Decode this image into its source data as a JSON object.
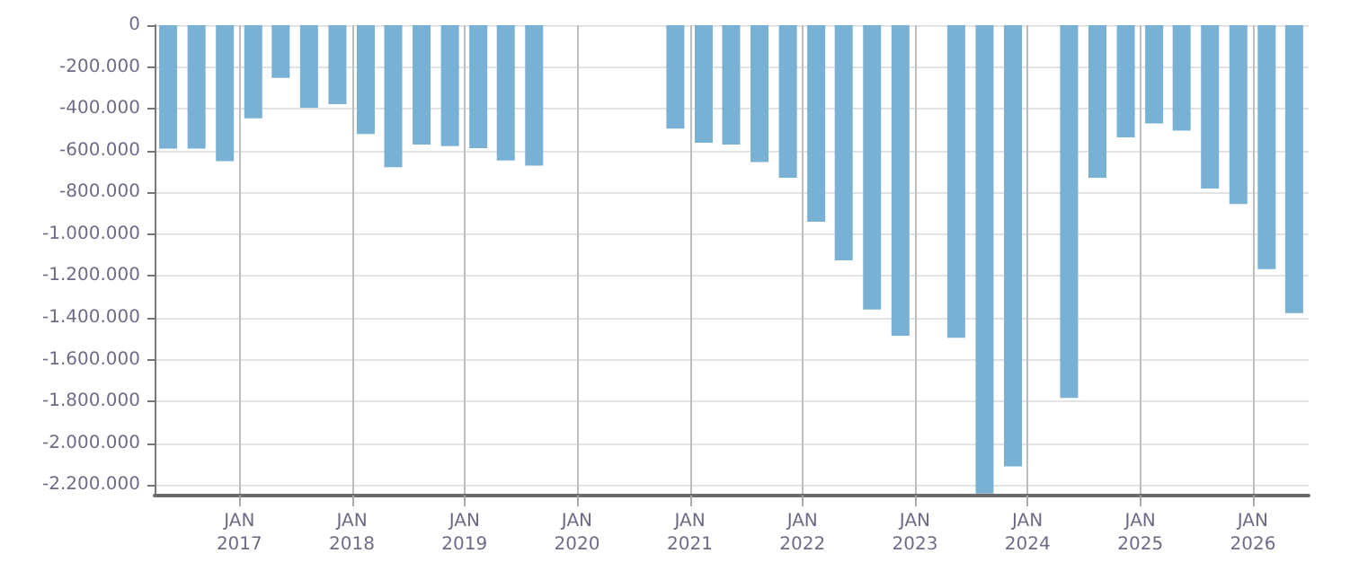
{
  "chart_data": {
    "type": "bar",
    "x": [
      "2016-05-15",
      "2016-08-15",
      "2016-11-15",
      "2017-02-15",
      "2017-05-15",
      "2017-08-15",
      "2017-11-15",
      "2018-02-15",
      "2018-05-15",
      "2018-08-15",
      "2018-11-15",
      "2019-02-15",
      "2019-05-15",
      "2019-08-15",
      "2019-11-15",
      "2020-02-15",
      "2020-05-15",
      "2020-08-15",
      "2020-11-15",
      "2021-02-15",
      "2021-05-15",
      "2021-08-15",
      "2021-11-15",
      "2022-02-15",
      "2022-05-15",
      "2022-08-15",
      "2022-11-15",
      "2023-02-15",
      "2023-05-15",
      "2023-08-15",
      "2023-11-15",
      "2024-02-15",
      "2024-05-15",
      "2024-08-15",
      "2024-11-15",
      "2025-02-15",
      "2025-05-15",
      "2025-08-15",
      "2025-11-15",
      "2026-02-15",
      "2026-05-15"
    ],
    "values": [
      -590000,
      -590000,
      -650000,
      -445000,
      -252000,
      -395000,
      -378000,
      -521000,
      -680000,
      -571000,
      -579000,
      -588000,
      -647000,
      -672000,
      null,
      null,
      null,
      null,
      -495000,
      -563000,
      -571000,
      -655000,
      -730000,
      -940000,
      -1125000,
      -1360000,
      -1486000,
      null,
      -1495000,
      -2240000,
      -2110000,
      null,
      -1783000,
      -730000,
      -537000,
      -470000,
      -504000,
      -781000,
      -856000,
      -1167000,
      -1377000
    ],
    "color": "#78b1d3",
    "xlim": [
      "2016-04-01",
      "2026-07-01"
    ],
    "xticks": [
      {
        "value": "2017-01-01",
        "label": "JAN\n2017"
      },
      {
        "value": "2018-01-01",
        "label": "JAN\n2018"
      },
      {
        "value": "2019-01-01",
        "label": "JAN\n2019"
      },
      {
        "value": "2020-01-01",
        "label": "JAN\n2020"
      },
      {
        "value": "2021-01-01",
        "label": "JAN\n2021"
      },
      {
        "value": "2022-01-01",
        "label": "JAN\n2022"
      },
      {
        "value": "2023-01-01",
        "label": "JAN\n2023"
      },
      {
        "value": "2024-01-01",
        "label": "JAN\n2024"
      },
      {
        "value": "2025-01-01",
        "label": "JAN\n2025"
      },
      {
        "value": "2026-01-01",
        "label": "JAN\n2026"
      }
    ],
    "ylim": [
      -2250000,
      0
    ],
    "yticks": [
      {
        "value": 0,
        "label": "0"
      },
      {
        "value": -200000,
        "label": "-200.000"
      },
      {
        "value": -400000,
        "label": "-400.000"
      },
      {
        "value": -600000,
        "label": "-600.000"
      },
      {
        "value": -800000,
        "label": "-800.000"
      },
      {
        "value": -1000000,
        "label": "-1.000.000"
      },
      {
        "value": -1200000,
        "label": "-1.200.000"
      },
      {
        "value": -1400000,
        "label": "-1.400.000"
      },
      {
        "value": -1600000,
        "label": "-1.600.000"
      },
      {
        "value": -1800000,
        "label": "-1.800.000"
      },
      {
        "value": -2000000,
        "label": "-2.000.000"
      },
      {
        "value": -2200000,
        "label": "-2.200.000"
      }
    ],
    "grid": true
  }
}
